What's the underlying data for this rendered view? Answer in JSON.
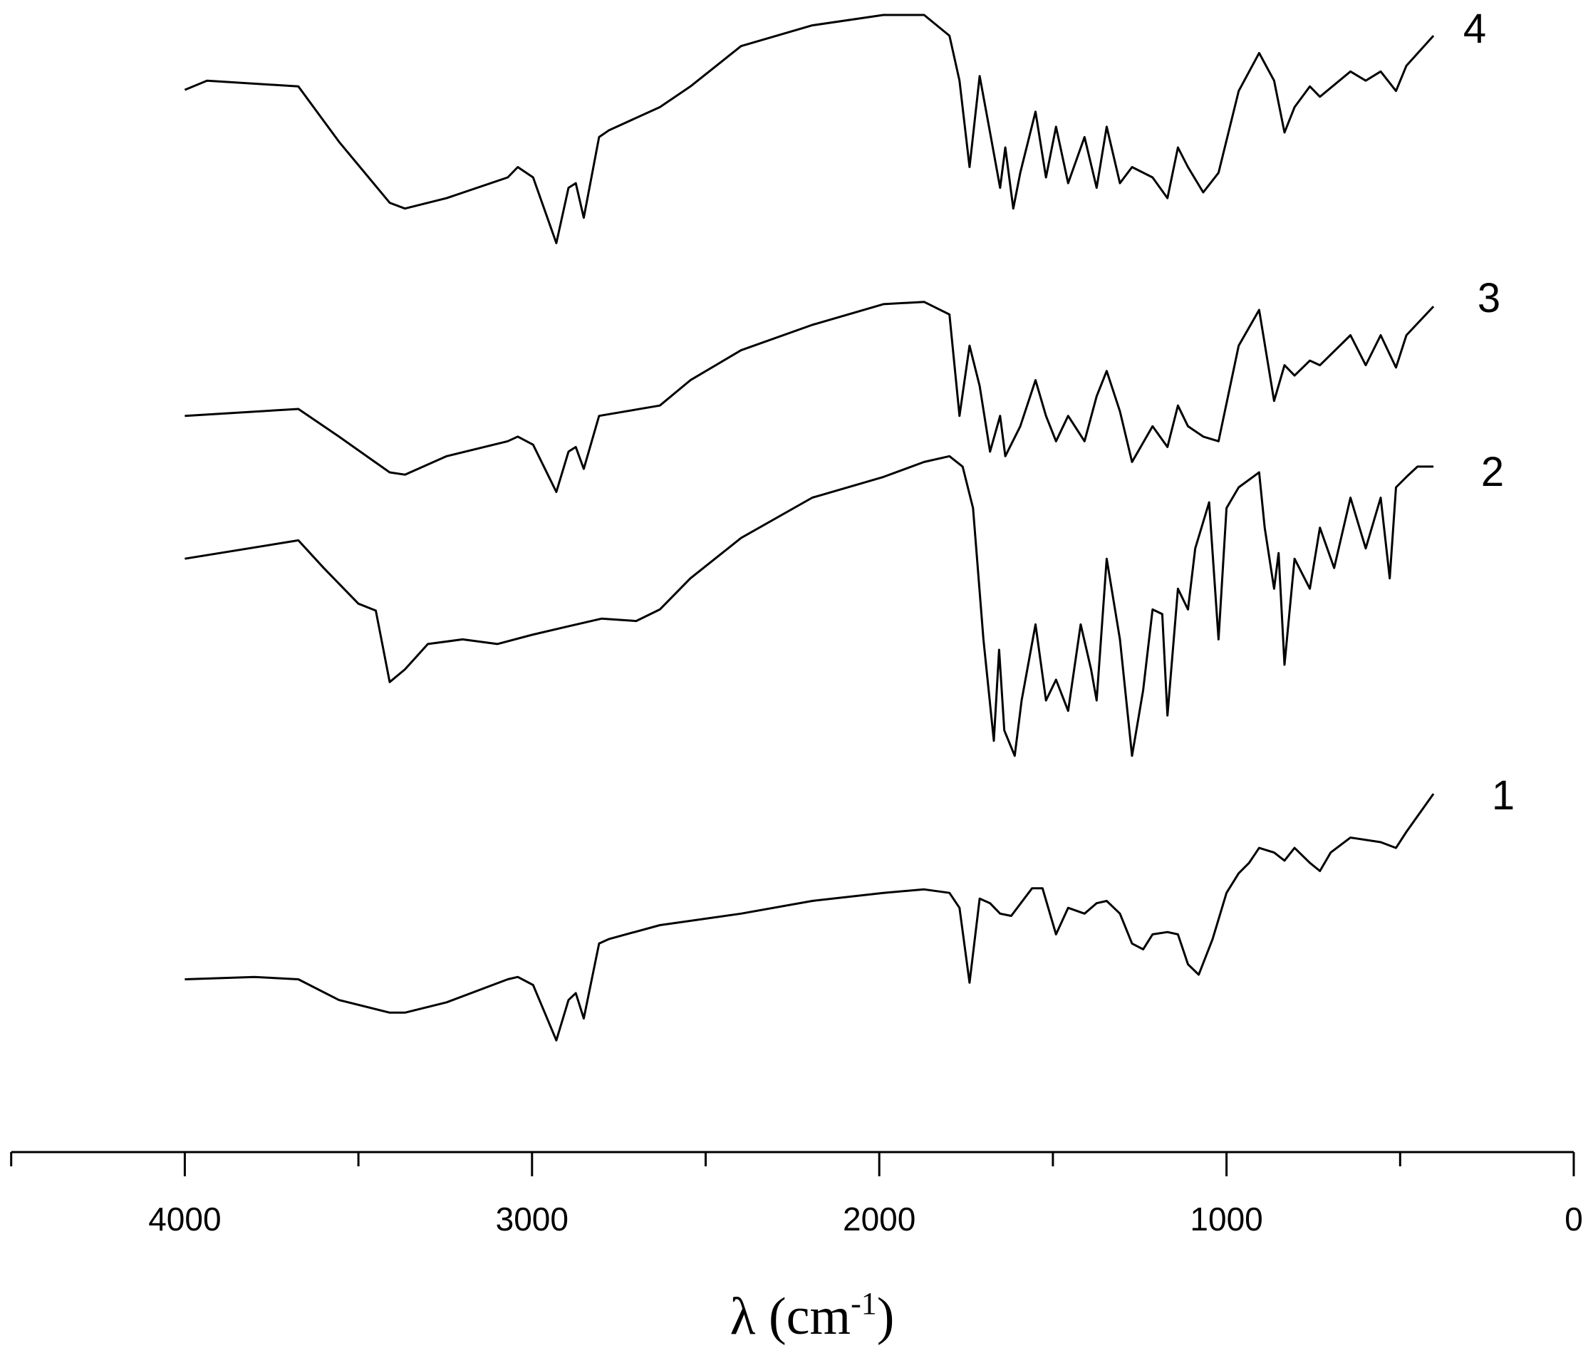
{
  "chart_data": {
    "type": "line",
    "xlabel": {
      "main": "λ (cm",
      "superscript": "-1",
      "close": ")"
    },
    "xlim": [
      4500,
      0
    ],
    "xticks": [
      4000,
      3000,
      2000,
      1000,
      0
    ],
    "xminor_ticks": [
      4500,
      3500,
      2500,
      1500,
      500
    ],
    "ylim": [
      0,
      100
    ],
    "series": [
      {
        "name": "4",
        "color": "#000000",
        "x": [
          4000,
          3936,
          3673,
          3556,
          3410,
          3366,
          3246,
          3070,
          3041,
          2997,
          2930,
          2895,
          2874,
          2851,
          2807,
          2778,
          2632,
          2544,
          2398,
          2193,
          1988,
          1871,
          1798,
          1769,
          1740,
          1711,
          1681,
          1652,
          1637,
          1614,
          1594,
          1550,
          1520,
          1491,
          1456,
          1409,
          1374,
          1345,
          1307,
          1272,
          1213,
          1170,
          1140,
          1111,
          1067,
          1023,
          965,
          906,
          863,
          833,
          804,
          760,
          731,
          643,
          599,
          556,
          512,
          482,
          404
        ],
        "values": [
          92.2,
          93.0,
          92.5,
          87.7,
          82.4,
          81.9,
          82.8,
          84.6,
          85.5,
          84.6,
          78.9,
          83.7,
          84.1,
          81.1,
          88.1,
          88.7,
          90.7,
          92.5,
          96.0,
          97.8,
          98.7,
          98.7,
          96.9,
          93.0,
          85.5,
          93.4,
          88.5,
          83.7,
          87.2,
          81.9,
          85.0,
          90.3,
          84.6,
          89.0,
          84.1,
          88.1,
          83.7,
          89.0,
          84.1,
          85.5,
          84.6,
          82.8,
          87.2,
          85.5,
          83.3,
          85.0,
          92.1,
          95.4,
          93.0,
          88.5,
          90.7,
          92.5,
          91.6,
          93.8,
          93.0,
          93.8,
          92.1,
          94.3,
          96.9
        ]
      },
      {
        "name": "3",
        "color": "#000000",
        "x": [
          4000,
          3673,
          3556,
          3410,
          3366,
          3246,
          3070,
          3041,
          2997,
          2930,
          2895,
          2874,
          2851,
          2807,
          2632,
          2544,
          2398,
          2193,
          1988,
          1871,
          1798,
          1769,
          1740,
          1711,
          1681,
          1652,
          1637,
          1594,
          1550,
          1520,
          1491,
          1456,
          1409,
          1374,
          1345,
          1307,
          1272,
          1213,
          1170,
          1140,
          1111,
          1067,
          1023,
          965,
          906,
          863,
          833,
          804,
          760,
          731,
          643,
          599,
          556,
          512,
          482,
          404
        ],
        "values": [
          63.9,
          64.5,
          62.1,
          59.0,
          58.8,
          60.4,
          61.7,
          62.1,
          61.4,
          57.3,
          60.8,
          61.2,
          59.3,
          63.9,
          64.8,
          67.0,
          69.6,
          71.8,
          73.6,
          73.8,
          72.7,
          63.9,
          70.0,
          66.5,
          60.8,
          63.9,
          60.4,
          63.0,
          67.0,
          63.9,
          61.7,
          63.9,
          61.7,
          65.6,
          67.8,
          64.3,
          59.9,
          63.0,
          61.2,
          64.8,
          63.0,
          62.1,
          61.7,
          70.0,
          73.1,
          65.2,
          68.3,
          67.4,
          68.7,
          68.3,
          70.9,
          68.3,
          70.9,
          68.1,
          70.9,
          73.4
        ]
      },
      {
        "name": "2",
        "color": "#000000",
        "x": [
          4000,
          3673,
          3600,
          3500,
          3450,
          3410,
          3366,
          3300,
          3200,
          3100,
          3000,
          2900,
          2800,
          2700,
          2632,
          2544,
          2398,
          2193,
          1988,
          1871,
          1798,
          1760,
          1730,
          1700,
          1670,
          1655,
          1640,
          1610,
          1590,
          1550,
          1520,
          1491,
          1456,
          1420,
          1390,
          1374,
          1345,
          1307,
          1272,
          1240,
          1213,
          1185,
          1170,
          1140,
          1111,
          1090,
          1050,
          1023,
          1000,
          965,
          906,
          890,
          863,
          850,
          833,
          804,
          760,
          731,
          690,
          643,
          599,
          556,
          530,
          512,
          482,
          450,
          404
        ],
        "values": [
          51.5,
          53.1,
          50.7,
          47.6,
          47.0,
          40.8,
          41.9,
          44.1,
          44.5,
          44.1,
          44.9,
          45.6,
          46.3,
          46.1,
          47.1,
          49.8,
          53.3,
          56.8,
          58.6,
          59.9,
          60.4,
          59.5,
          55.9,
          44.5,
          35.7,
          43.6,
          36.6,
          34.4,
          39.2,
          45.8,
          39.2,
          41.0,
          38.3,
          45.8,
          41.9,
          39.2,
          51.5,
          44.5,
          34.4,
          40.1,
          47.1,
          46.7,
          37.9,
          48.9,
          47.1,
          52.4,
          56.4,
          44.5,
          55.9,
          57.7,
          59.0,
          54.2,
          48.9,
          52.0,
          42.3,
          51.5,
          48.9,
          54.2,
          50.7,
          56.8,
          52.4,
          56.8,
          49.8,
          57.7,
          58.6,
          59.5,
          59.5
        ]
      },
      {
        "name": "1",
        "color": "#000000",
        "x": [
          4000,
          3800,
          3673,
          3556,
          3410,
          3366,
          3246,
          3070,
          3041,
          2997,
          2930,
          2895,
          2874,
          2851,
          2807,
          2778,
          2632,
          2398,
          2193,
          1988,
          1871,
          1798,
          1769,
          1740,
          1711,
          1681,
          1652,
          1620,
          1560,
          1530,
          1491,
          1456,
          1409,
          1374,
          1345,
          1307,
          1272,
          1240,
          1213,
          1170,
          1140,
          1111,
          1080,
          1040,
          1000,
          965,
          935,
          906,
          863,
          833,
          804,
          760,
          731,
          700,
          643,
          556,
          512,
          482,
          404
        ],
        "values": [
          15.0,
          15.2,
          15.0,
          13.2,
          12.1,
          12.1,
          13.0,
          15.0,
          15.2,
          14.5,
          9.7,
          13.2,
          13.8,
          11.6,
          18.1,
          18.5,
          19.7,
          20.7,
          21.8,
          22.5,
          22.8,
          22.5,
          21.2,
          14.7,
          22.0,
          21.6,
          20.7,
          20.5,
          22.9,
          22.9,
          18.9,
          21.2,
          20.7,
          21.6,
          21.8,
          20.7,
          18.1,
          17.6,
          18.9,
          19.1,
          18.9,
          16.3,
          15.4,
          18.5,
          22.5,
          24.2,
          25.1,
          26.4,
          26.0,
          25.3,
          26.4,
          25.1,
          24.4,
          26.0,
          27.3,
          26.9,
          26.4,
          27.8,
          31.1
        ]
      }
    ]
  }
}
